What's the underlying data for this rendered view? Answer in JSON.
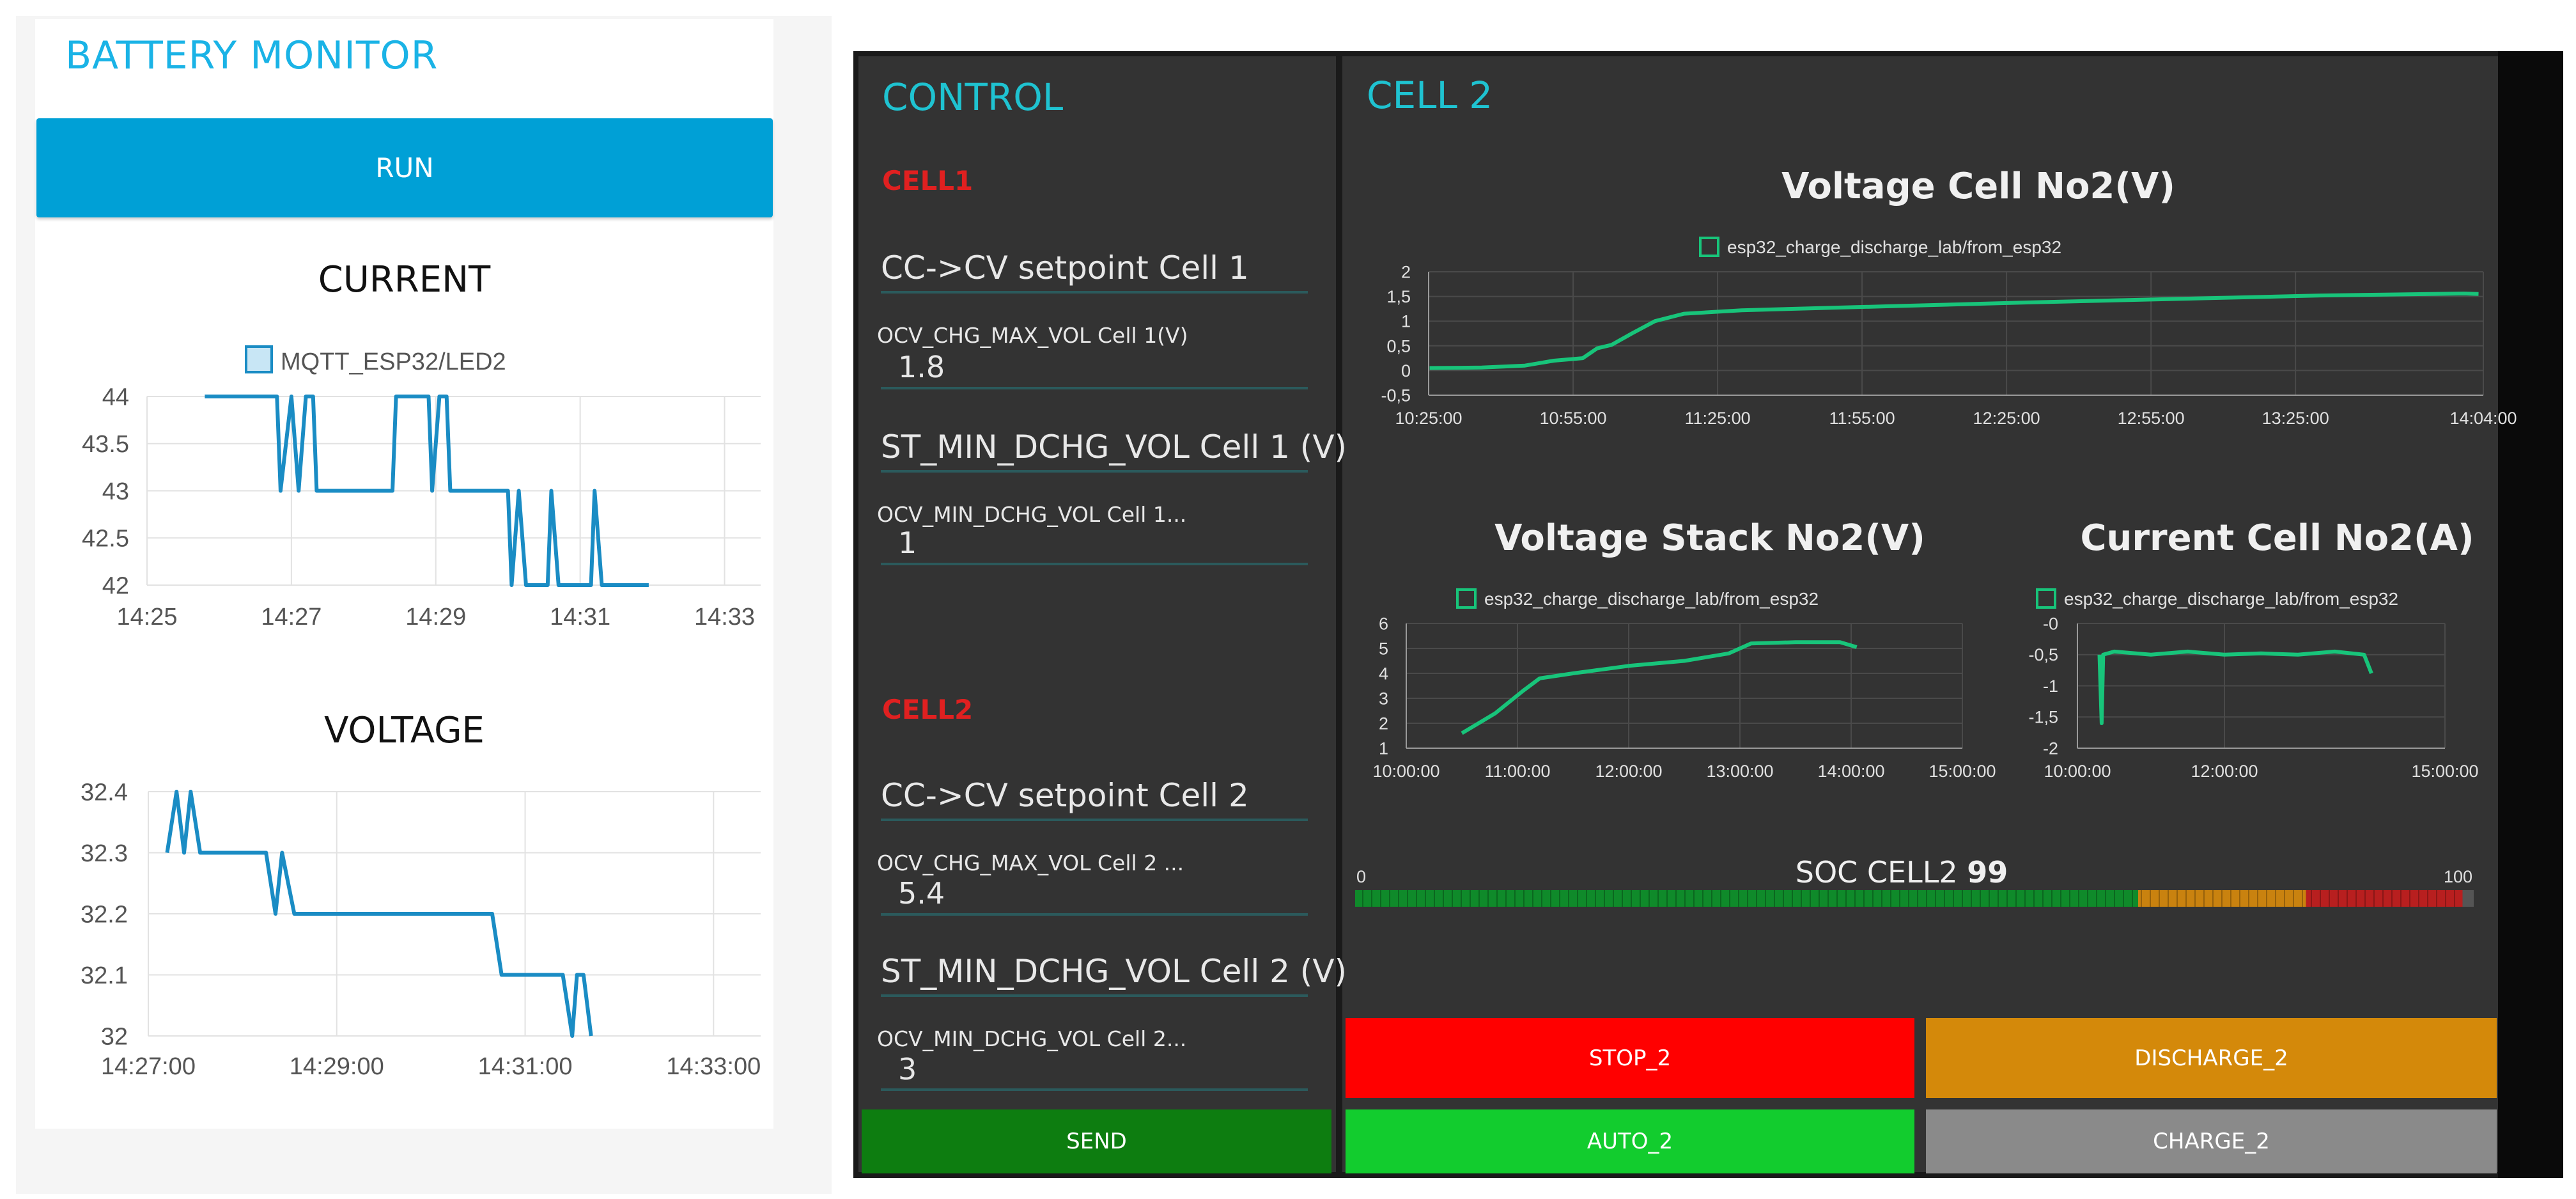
{
  "left": {
    "title": "BATTERY MONITOR",
    "run_label": "RUN",
    "current_heading": "CURRENT",
    "voltage_heading": "VOLTAGE"
  },
  "control": {
    "title": "CONTROL",
    "cell1": {
      "tag": "CELL1",
      "cc_cv_label": "CC->CV setpoint Cell 1",
      "ocv_chg_label": "OCV_CHG_MAX_VOL Cell 1(V)",
      "ocv_chg_value": "1.8",
      "st_min_label": "ST_MIN_DCHG_VOL Cell 1 (V)",
      "ocv_min_label": "OCV_MIN_DCHG_VOL Cell 1...",
      "ocv_min_value": "1"
    },
    "cell2": {
      "tag": "CELL2",
      "cc_cv_label": "CC->CV setpoint Cell 2",
      "ocv_chg_label": "OCV_CHG_MAX_VOL Cell 2 ...",
      "ocv_chg_value": "5.4",
      "st_min_label": "ST_MIN_DCHG_VOL Cell 2 (V)",
      "ocv_min_label": "OCV_MIN_DCHG_VOL Cell 2...",
      "ocv_min_value": "3"
    },
    "send_label": "SEND"
  },
  "cell2_panel": {
    "title": "CELL 2",
    "soc_label": "SOC CELL2",
    "soc_value": "99",
    "soc_min": "0",
    "soc_max": "100",
    "soc_fraction": 0.99,
    "buttons": {
      "stop": "STOP_2",
      "discharge": "DISCHARGE_2",
      "auto": "AUTO_2",
      "charge": "CHARGE_2"
    }
  },
  "colors": {
    "left_line": "#1a8cc4",
    "right_line": "#18c47a",
    "stop": "#ff0000",
    "discharge": "#d4890a",
    "auto": "#12cc2e",
    "charge": "#8a8a8a",
    "send": "#0d7d10"
  },
  "chart_data": [
    {
      "id": "current",
      "type": "line",
      "series": [
        {
          "name": "MQTT_ESP32/LED2",
          "points": [
            [
              25.8,
              44
            ],
            [
              26.8,
              44
            ],
            [
              26.85,
              43
            ],
            [
              27.0,
              44
            ],
            [
              27.1,
              43
            ],
            [
              27.2,
              44
            ],
            [
              27.3,
              44
            ],
            [
              27.35,
              43
            ],
            [
              28.4,
              43
            ],
            [
              28.45,
              44
            ],
            [
              28.9,
              44
            ],
            [
              28.95,
              43
            ],
            [
              29.05,
              44
            ],
            [
              29.15,
              44
            ],
            [
              29.2,
              43
            ],
            [
              30.0,
              43
            ],
            [
              30.05,
              42
            ],
            [
              30.15,
              43
            ],
            [
              30.25,
              42
            ],
            [
              30.55,
              42
            ],
            [
              30.6,
              43
            ],
            [
              30.7,
              42
            ],
            [
              31.15,
              42
            ],
            [
              31.2,
              43
            ],
            [
              31.3,
              42
            ],
            [
              31.95,
              42
            ]
          ]
        }
      ],
      "x_ticks": [
        "14:25",
        "14:27",
        "14:29",
        "14:31",
        "14:33"
      ],
      "x_tick_values": [
        25,
        27,
        29,
        31,
        33
      ],
      "y_ticks": [
        "44",
        "43.5",
        "43",
        "42.5",
        "42"
      ],
      "xlim": [
        25,
        33.5
      ],
      "ylim": [
        42,
        44
      ],
      "grid": true,
      "legend": "top-center"
    },
    {
      "id": "voltage",
      "type": "line",
      "series": [
        {
          "name": "",
          "points": [
            [
              27.2,
              32.3
            ],
            [
              27.3,
              32.4
            ],
            [
              27.38,
              32.3
            ],
            [
              27.45,
              32.4
            ],
            [
              27.55,
              32.3
            ],
            [
              28.25,
              32.3
            ],
            [
              28.35,
              32.2
            ],
            [
              28.42,
              32.3
            ],
            [
              28.55,
              32.2
            ],
            [
              30.65,
              32.2
            ],
            [
              30.75,
              32.1
            ],
            [
              31.4,
              32.1
            ],
            [
              31.5,
              32.0
            ],
            [
              31.55,
              32.1
            ],
            [
              31.62,
              32.1
            ],
            [
              31.7,
              32.0
            ]
          ]
        }
      ],
      "x_ticks": [
        "14:27:00",
        "14:29:00",
        "14:31:00",
        "14:33:00"
      ],
      "x_tick_values": [
        27,
        29,
        31,
        33
      ],
      "y_ticks": [
        "32.4",
        "32.3",
        "32.2",
        "32.1",
        "32"
      ],
      "xlim": [
        27,
        33.5
      ],
      "ylim": [
        32,
        32.4
      ],
      "grid": true
    },
    {
      "id": "voltage_cell",
      "type": "line",
      "title": "Voltage Cell No2(V)",
      "series": [
        {
          "name": "esp32_charge_discharge_lab/from_esp32",
          "points": [
            [
              10.42,
              0.05
            ],
            [
              10.6,
              0.06
            ],
            [
              10.75,
              0.1
            ],
            [
              10.85,
              0.2
            ],
            [
              10.95,
              0.25
            ],
            [
              11.0,
              0.45
            ],
            [
              11.05,
              0.52
            ],
            [
              11.12,
              0.75
            ],
            [
              11.2,
              1.0
            ],
            [
              11.3,
              1.15
            ],
            [
              11.5,
              1.22
            ],
            [
              12.0,
              1.3
            ],
            [
              12.5,
              1.38
            ],
            [
              13.0,
              1.45
            ],
            [
              13.5,
              1.52
            ],
            [
              14.0,
              1.56
            ],
            [
              14.05,
              1.55
            ]
          ]
        }
      ],
      "x_ticks": [
        "10:25:00",
        "10:55:00",
        "11:25:00",
        "11:55:00",
        "12:25:00",
        "12:55:00",
        "13:25:00",
        "14:04:00"
      ],
      "x_tick_values": [
        10.4167,
        10.9167,
        11.4167,
        11.9167,
        12.4167,
        12.9167,
        13.4167,
        14.0667
      ],
      "y_ticks": [
        "2",
        "1,5",
        "1",
        "0,5",
        "0",
        "-0,5"
      ],
      "y_tick_values": [
        2,
        1.5,
        1,
        0.5,
        0,
        -0.5
      ],
      "xlim": [
        10.4167,
        14.0667
      ],
      "ylim": [
        -0.5,
        2
      ],
      "grid": true,
      "legend": "top-center"
    },
    {
      "id": "voltage_stack",
      "type": "line",
      "title": "Voltage Stack No2(V)",
      "series": [
        {
          "name": "esp32_charge_discharge_lab/from_esp32",
          "points": [
            [
              10.5,
              1.6
            ],
            [
              10.8,
              2.4
            ],
            [
              11.05,
              3.3
            ],
            [
              11.2,
              3.8
            ],
            [
              11.5,
              4.0
            ],
            [
              12.0,
              4.3
            ],
            [
              12.5,
              4.5
            ],
            [
              12.9,
              4.8
            ],
            [
              13.1,
              5.2
            ],
            [
              13.5,
              5.25
            ],
            [
              13.9,
              5.25
            ],
            [
              14.05,
              5.05
            ]
          ]
        }
      ],
      "x_ticks": [
        "10:00:00",
        "11:00:00",
        "12:00:00",
        "13:00:00",
        "14:00:00",
        "15:00:00"
      ],
      "x_tick_values": [
        10,
        11,
        12,
        13,
        14,
        15
      ],
      "y_ticks": [
        "6",
        "5",
        "4",
        "3",
        "2",
        "1"
      ],
      "y_tick_values": [
        6,
        5,
        4,
        3,
        2,
        1
      ],
      "xlim": [
        10,
        15
      ],
      "ylim": [
        1,
        6
      ],
      "grid": true,
      "legend": "top-center"
    },
    {
      "id": "current_cell",
      "type": "line",
      "title": "Current Cell No2(A)",
      "series": [
        {
          "name": "esp32_charge_discharge_lab/from_esp32",
          "points": [
            [
              10.3,
              -0.5
            ],
            [
              10.33,
              -1.6
            ],
            [
              10.35,
              -0.5
            ],
            [
              10.5,
              -0.45
            ],
            [
              11.0,
              -0.5
            ],
            [
              11.5,
              -0.45
            ],
            [
              12.0,
              -0.5
            ],
            [
              12.5,
              -0.48
            ],
            [
              13.0,
              -0.5
            ],
            [
              13.5,
              -0.45
            ],
            [
              13.9,
              -0.5
            ],
            [
              14.0,
              -0.8
            ]
          ]
        }
      ],
      "x_ticks": [
        "10:00:00",
        "12:00:00",
        "15:00:00"
      ],
      "x_tick_values": [
        10,
        12,
        15
      ],
      "y_ticks": [
        "-0",
        "-0,5",
        "-1",
        "-1,5",
        "-2"
      ],
      "y_tick_values": [
        0,
        -0.5,
        -1,
        -1.5,
        -2
      ],
      "xlim": [
        10,
        15
      ],
      "ylim": [
        -2,
        0
      ],
      "grid": true,
      "legend": "top-center"
    }
  ]
}
